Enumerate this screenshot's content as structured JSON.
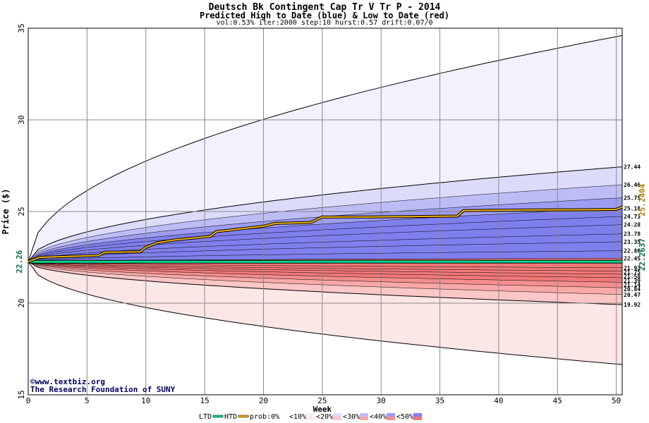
{
  "chart_data": {
    "type": "area",
    "title": "Deutsch Bk Contingent Cap Tr V Tr P - 2014",
    "subtitle": "Predicted High to Date (blue) &  Low to Date (red)",
    "params": "vol:0.53% iter:2000 step:10 hurst:0.57 drift:0.07/0",
    "xlabel": "Week",
    "ylabel": "Price ($)",
    "xlim": [
      0,
      50.5
    ],
    "ylim": [
      15,
      35
    ],
    "xticks": [
      "0",
      "5",
      "10",
      "15",
      "20",
      "25",
      "30",
      "35",
      "40",
      "45",
      "50"
    ],
    "yticks": [
      "15",
      "20",
      "25",
      "30",
      "35"
    ],
    "start_label": "22.26",
    "start": 22.26,
    "grid": true,
    "band_colors": [
      "#f2f2fe",
      "#dcdcfa",
      "#bdbdf6",
      "#9d9df2",
      "#7f7fee",
      "#fde6e6",
      "#fbc6c6",
      "#f8a8a8",
      "#f48e8e",
      "#f27878"
    ],
    "upper_bands": [
      {
        "name": "prob:0%",
        "end": 34.6
      },
      {
        "name": "<10%",
        "end": 27.44
      },
      {
        "name": "<20%",
        "end": 26.46
      },
      {
        "name": "<30%",
        "end": 25.75
      },
      {
        "name": "<40%",
        "end": 25.18
      },
      {
        "name": "<50%",
        "end": 24.73
      },
      {
        "name": "",
        "end": 24.28
      },
      {
        "name": "",
        "end": 23.78
      },
      {
        "name": "",
        "end": 23.35
      },
      {
        "name": "",
        "end": 22.86
      }
    ],
    "lower_bands": [
      {
        "name": "prob:0%",
        "end": 16.65
      },
      {
        "name": "<10%",
        "end": 19.92
      },
      {
        "name": "<20%",
        "end": 20.47
      },
      {
        "name": "<30%",
        "end": 20.84
      },
      {
        "name": "<40%",
        "end": 21.14
      },
      {
        "name": "<50%",
        "end": 21.39
      },
      {
        "name": "",
        "end": 21.58
      },
      {
        "name": "",
        "end": 21.75
      },
      {
        "name": "",
        "end": 21.93
      },
      {
        "name": "",
        "end": 22.45
      }
    ],
    "right_labels": [
      "27.44",
      "26.46",
      "25.75",
      "25.18",
      "24.73",
      "24.28",
      "23.78",
      "23.35",
      "22.86",
      "22.45",
      "21.93",
      "21.75",
      "21.58",
      "21.39",
      "21.14",
      "20.84",
      "20.47",
      "19.92"
    ],
    "htd": {
      "name": "HTD",
      "x": [
        0,
        1,
        6,
        6.5,
        9.5,
        10,
        11,
        12.5,
        14,
        15.5,
        16,
        18,
        20,
        21,
        24,
        25,
        29,
        36.5,
        37,
        42,
        48,
        50,
        50.5
      ],
      "y": [
        22.26,
        22.5,
        22.6,
        22.78,
        22.8,
        23.05,
        23.3,
        23.45,
        23.55,
        23.65,
        23.9,
        24.05,
        24.2,
        24.35,
        24.4,
        24.7,
        24.7,
        24.75,
        25.05,
        25.08,
        25.1,
        25.12,
        25.24
      ],
      "end_label": "25.2404",
      "color": "#b08000"
    },
    "ltd": {
      "name": "LTD",
      "x": [
        0,
        50.5
      ],
      "y": [
        22.26,
        22.2637
      ],
      "end_label": "22.2637",
      "color": "#00d890"
    },
    "legend_items": [
      "LTD",
      "HTD",
      "prob:0%",
      "<10%",
      "<20%",
      "<30%",
      "<40%",
      "<50%"
    ],
    "credit_line1": "www.textbiz.org",
    "credit_line2": "The Research Foundation of SUNY"
  }
}
